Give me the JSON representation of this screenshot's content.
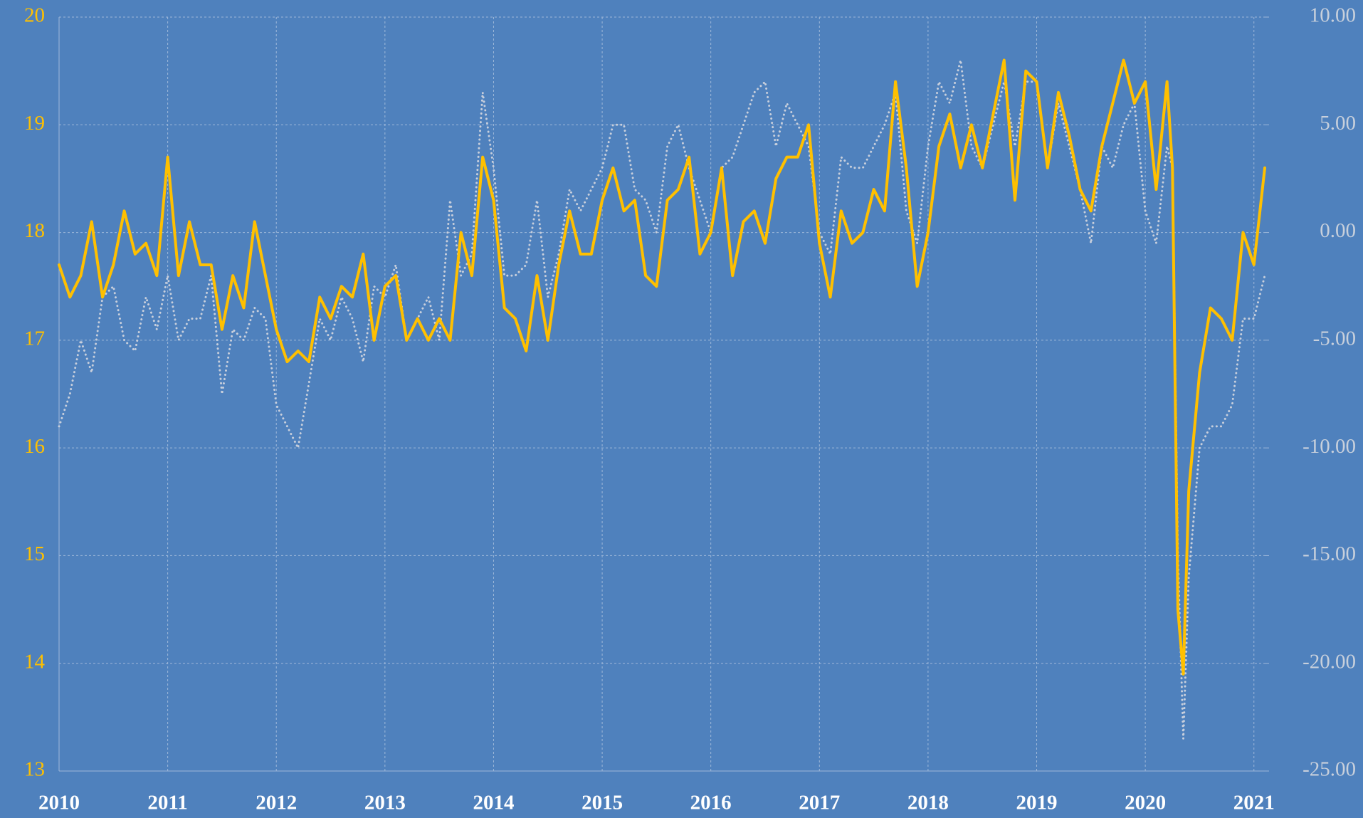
{
  "chart_data": {
    "type": "line",
    "x": [
      2010.0,
      2010.1,
      2010.2,
      2010.3,
      2010.4,
      2010.5,
      2010.6,
      2010.7,
      2010.8,
      2010.9,
      2011.0,
      2011.1,
      2011.2,
      2011.3,
      2011.4,
      2011.5,
      2011.6,
      2011.7,
      2011.8,
      2011.9,
      2012.0,
      2012.1,
      2012.2,
      2012.3,
      2012.4,
      2012.5,
      2012.6,
      2012.7,
      2012.8,
      2012.9,
      2013.0,
      2013.1,
      2013.2,
      2013.3,
      2013.4,
      2013.5,
      2013.6,
      2013.7,
      2013.8,
      2013.9,
      2014.0,
      2014.1,
      2014.2,
      2014.3,
      2014.4,
      2014.5,
      2014.6,
      2014.7,
      2014.8,
      2014.9,
      2015.0,
      2015.1,
      2015.2,
      2015.3,
      2015.4,
      2015.5,
      2015.6,
      2015.7,
      2015.8,
      2015.9,
      2016.0,
      2016.1,
      2016.2,
      2016.3,
      2016.4,
      2016.5,
      2016.6,
      2016.7,
      2016.8,
      2016.9,
      2017.0,
      2017.1,
      2017.2,
      2017.3,
      2017.4,
      2017.5,
      2017.6,
      2017.7,
      2017.8,
      2017.9,
      2018.0,
      2018.1,
      2018.2,
      2018.3,
      2018.4,
      2018.5,
      2018.6,
      2018.7,
      2018.8,
      2018.9,
      2019.0,
      2019.1,
      2019.2,
      2019.3,
      2019.4,
      2019.5,
      2019.6,
      2019.7,
      2019.8,
      2019.9,
      2020.0,
      2020.1,
      2020.2,
      2020.25,
      2020.3,
      2020.35,
      2020.4,
      2020.5,
      2020.6,
      2020.7,
      2020.8,
      2020.9,
      2021.0,
      2021.1
    ],
    "series": [
      {
        "color": "#ffc000",
        "values": [
          17.7,
          17.4,
          17.6,
          18.1,
          17.4,
          17.7,
          18.2,
          17.8,
          17.9,
          17.6,
          18.7,
          17.6,
          18.1,
          17.7,
          17.7,
          17.1,
          17.6,
          17.3,
          18.1,
          17.6,
          17.1,
          16.8,
          16.9,
          16.8,
          17.4,
          17.2,
          17.5,
          17.4,
          17.8,
          17.0,
          17.5,
          17.6,
          17.0,
          17.2,
          17.0,
          17.2,
          17.0,
          18.0,
          17.6,
          18.7,
          18.3,
          17.3,
          17.2,
          16.9,
          17.6,
          17.0,
          17.7,
          18.2,
          17.8,
          17.8,
          18.3,
          18.6,
          18.2,
          18.3,
          17.6,
          17.5,
          18.3,
          18.4,
          18.7,
          17.8,
          18.0,
          18.6,
          17.6,
          18.1,
          18.2,
          17.9,
          18.5,
          18.7,
          18.7,
          19.0,
          17.9,
          17.4,
          18.2,
          17.9,
          18.0,
          18.4,
          18.2,
          19.4,
          18.6,
          17.5,
          18.0,
          18.8,
          19.1,
          18.6,
          19.0,
          18.6,
          19.1,
          19.6,
          18.3,
          19.5,
          19.4,
          18.6,
          19.3,
          18.9,
          18.4,
          18.2,
          18.8,
          19.2,
          19.6,
          19.2,
          19.4,
          18.4,
          19.4,
          18.6,
          14.5,
          13.9,
          15.6,
          16.7,
          17.3,
          17.2,
          17.0,
          18.0,
          17.7,
          18.6
        ]
      },
      {
        "color": "#c8cfdc",
        "axis": "y2",
        "dashed": true,
        "values": [
          -9,
          -7.5,
          -5,
          -6.5,
          -3,
          -2.5,
          -5,
          -5.5,
          -3,
          -4.5,
          -2,
          -5,
          -4,
          -4,
          -2,
          -7.5,
          -4.5,
          -5,
          -3.5,
          -4,
          -8,
          -9,
          -10,
          -7,
          -4,
          -5,
          -3,
          -4,
          -6,
          -2.5,
          -3,
          -1.5,
          -5,
          -4,
          -3,
          -5,
          1.5,
          -2,
          -1,
          6.5,
          3,
          -2,
          -2,
          -1.5,
          1.5,
          -3,
          -1,
          2,
          1,
          2,
          3,
          5,
          5,
          2,
          1.5,
          0,
          4,
          5,
          3,
          1.5,
          0,
          3,
          3.5,
          5,
          6.5,
          7,
          4,
          6,
          5,
          4,
          0,
          -1,
          3.5,
          3,
          3,
          4,
          5,
          6.5,
          1,
          -0.5,
          4,
          7,
          6,
          8,
          4,
          3,
          5,
          7,
          4,
          7,
          7,
          3,
          6,
          4,
          2,
          -0.5,
          4,
          3,
          5,
          6,
          1,
          -0.5,
          4,
          3,
          -15,
          -23.5,
          -16,
          -10,
          -9,
          -9,
          -8,
          -4,
          -4,
          -2
        ]
      }
    ],
    "xlim": [
      2010,
      2021.1
    ],
    "xticks": [
      2010,
      2011,
      2012,
      2013,
      2014,
      2015,
      2016,
      2017,
      2018,
      2019,
      2020,
      2021
    ],
    "ylim": [
      13,
      20
    ],
    "yticks": [
      13,
      14,
      15,
      16,
      17,
      18,
      19,
      20
    ],
    "y2lim": [
      -25,
      10
    ],
    "y2ticks": [
      {
        "value": -25,
        "label": "-25.00"
      },
      {
        "value": -20,
        "label": "-20.00"
      },
      {
        "value": -15,
        "label": "-15.00"
      },
      {
        "value": -10,
        "label": "-10.00"
      },
      {
        "value": -5,
        "label": "-5.00"
      },
      {
        "value": 0,
        "label": "0.00"
      },
      {
        "value": 5,
        "label": "5.00"
      },
      {
        "value": 10,
        "label": "10.00"
      }
    ],
    "grid": true
  }
}
